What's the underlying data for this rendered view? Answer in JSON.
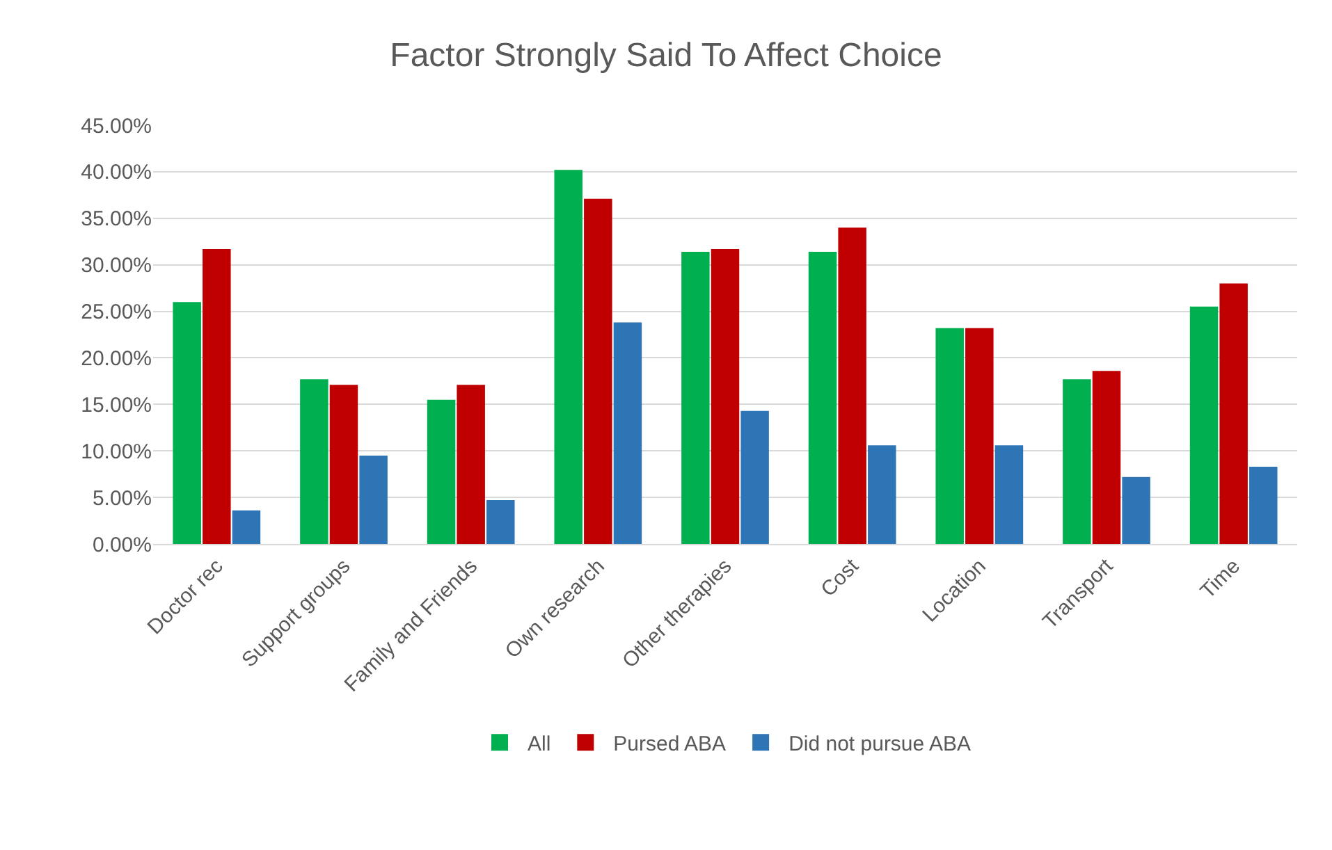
{
  "chart_data": {
    "type": "bar",
    "title": "Factor Strongly Said To Affect Choice",
    "categories": [
      "Doctor rec",
      "Support groups",
      "Family and Friends",
      "Own research",
      "Other therapies",
      "Cost",
      "Location",
      "Transport",
      "Time"
    ],
    "series": [
      {
        "name": "All",
        "color": "#00b050",
        "values": [
          26.0,
          17.7,
          15.5,
          40.2,
          31.4,
          31.4,
          23.2,
          17.7,
          25.5
        ]
      },
      {
        "name": "Pursed ABA",
        "color": "#c00000",
        "values": [
          31.7,
          17.1,
          17.1,
          37.1,
          31.7,
          34.0,
          23.2,
          18.6,
          28.0
        ]
      },
      {
        "name": "Did not pursue ABA",
        "color": "#2e75b6",
        "values": [
          3.6,
          9.5,
          4.7,
          23.8,
          14.3,
          10.6,
          10.6,
          7.2,
          8.3
        ]
      }
    ],
    "ylim": [
      0,
      45
    ],
    "yticks": [
      {
        "value": 0,
        "label": "0.00%"
      },
      {
        "value": 5,
        "label": "5.00%"
      },
      {
        "value": 10,
        "label": "10.00%"
      },
      {
        "value": 15,
        "label": "15.00%"
      },
      {
        "value": 20,
        "label": "20.00%"
      },
      {
        "value": 25,
        "label": "25.00%"
      },
      {
        "value": 30,
        "label": "30.00%"
      },
      {
        "value": 35,
        "label": "35.00%"
      },
      {
        "value": 40,
        "label": "40.00%"
      },
      {
        "value": 45,
        "label": "45.00%"
      }
    ],
    "grid": "y",
    "legend": "bottom"
  }
}
